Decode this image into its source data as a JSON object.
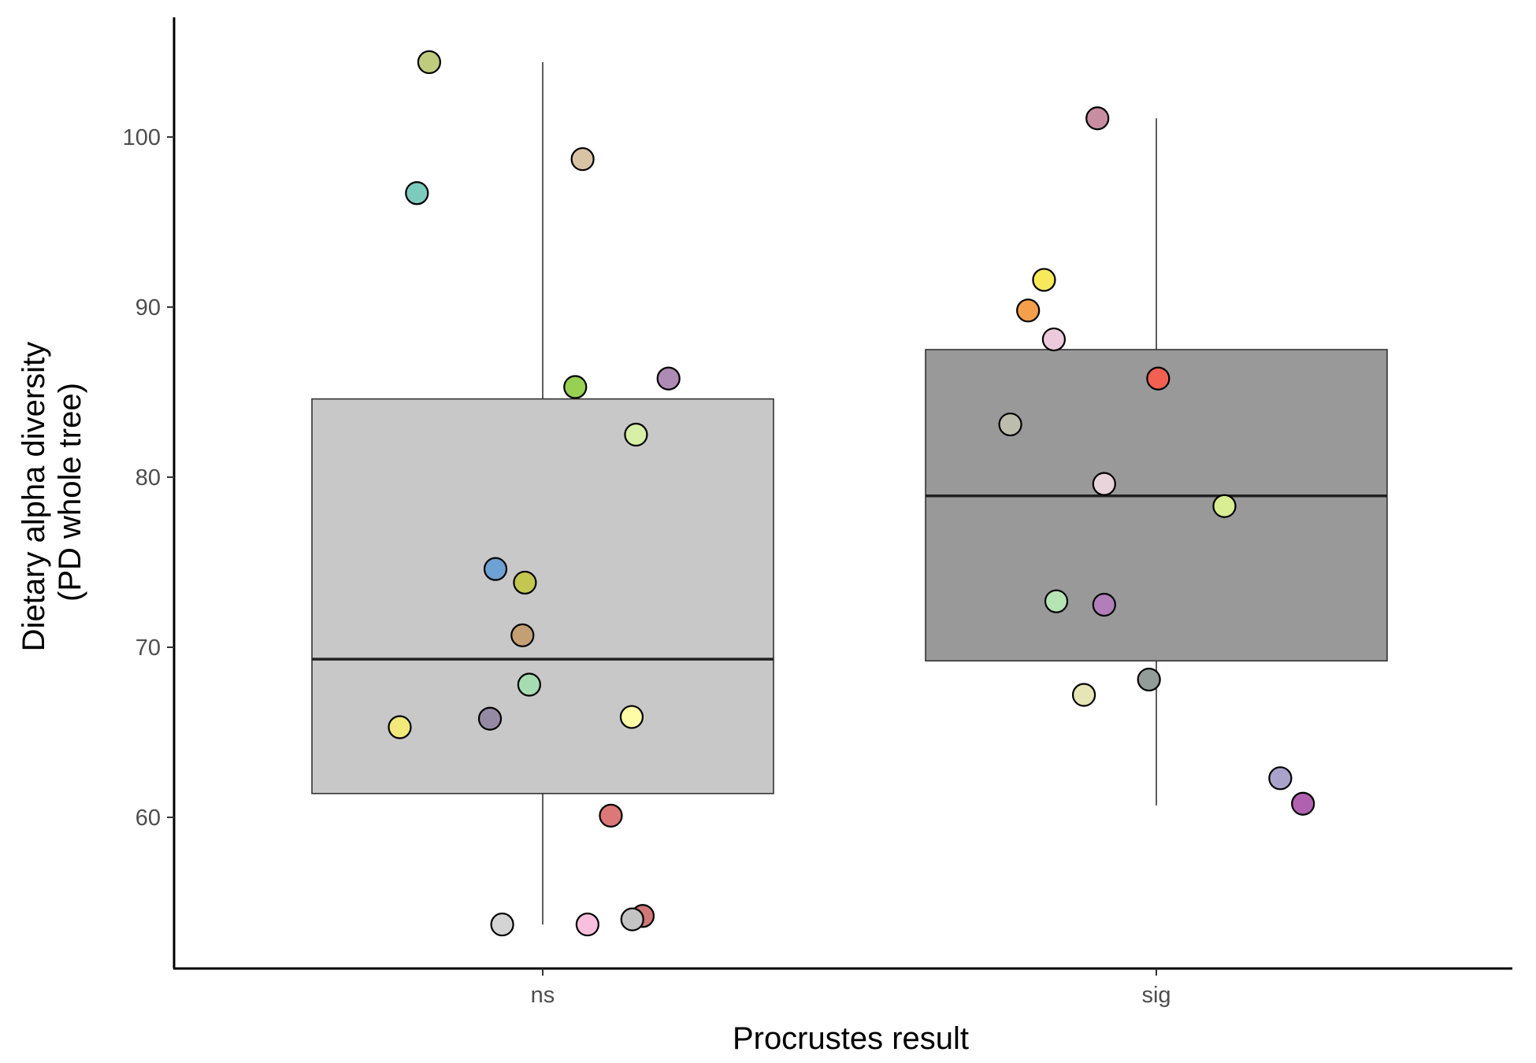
{
  "chart_data": {
    "type": "box",
    "xlabel": "Procrustes result",
    "ylabel_lines": [
      "Dietary alpha diversity",
      "(PD whole tree)"
    ],
    "categories": [
      "ns",
      "sig"
    ],
    "yticks": [
      60,
      70,
      80,
      90,
      100
    ],
    "ylim": [
      51,
      107
    ],
    "grid": false,
    "legend": "none",
    "boxes": [
      {
        "category": "ns",
        "whisker_low": 53.7,
        "q1": 61.4,
        "median": 69.3,
        "q3": 84.6,
        "whisker_high": 104.4,
        "fill": "#c8c8c8"
      },
      {
        "category": "sig",
        "whisker_low": 60.7,
        "q1": 69.2,
        "median": 78.9,
        "q3": 87.5,
        "whisker_high": 101.1,
        "fill": "#999999"
      }
    ],
    "points": [
      {
        "group": "ns",
        "jitter": -0.185,
        "y": 104.4,
        "color": "#bfcc7d"
      },
      {
        "group": "ns",
        "jitter": -0.205,
        "y": 96.7,
        "color": "#7dcbbd"
      },
      {
        "group": "ns",
        "jitter": 0.065,
        "y": 98.7,
        "color": "#d8c3a5"
      },
      {
        "group": "ns",
        "jitter": 0.205,
        "y": 85.8,
        "color": "#ae8bb4"
      },
      {
        "group": "ns",
        "jitter": 0.053,
        "y": 85.3,
        "color": "#97d053"
      },
      {
        "group": "ns",
        "jitter": 0.152,
        "y": 82.5,
        "color": "#d8f0a6"
      },
      {
        "group": "ns",
        "jitter": -0.077,
        "y": 74.6,
        "color": "#6ea1d4"
      },
      {
        "group": "ns",
        "jitter": -0.029,
        "y": 73.8,
        "color": "#c3c64f"
      },
      {
        "group": "ns",
        "jitter": -0.033,
        "y": 70.7,
        "color": "#c49f74"
      },
      {
        "group": "ns",
        "jitter": -0.022,
        "y": 67.8,
        "color": "#a6dcb1"
      },
      {
        "group": "ns",
        "jitter": -0.233,
        "y": 65.3,
        "color": "#f3e97b"
      },
      {
        "group": "ns",
        "jitter": -0.086,
        "y": 65.8,
        "color": "#958aa3"
      },
      {
        "group": "ns",
        "jitter": 0.145,
        "y": 65.9,
        "color": "#fffca8"
      },
      {
        "group": "ns",
        "jitter": 0.111,
        "y": 60.1,
        "color": "#dc7878"
      },
      {
        "group": "ns",
        "jitter": 0.163,
        "y": 54.2,
        "color": "#d07878"
      },
      {
        "group": "ns",
        "jitter": -0.066,
        "y": 53.7,
        "color": "#d4d4d4"
      },
      {
        "group": "ns",
        "jitter": 0.073,
        "y": 53.7,
        "color": "#f8c0dc"
      },
      {
        "group": "ns",
        "jitter": 0.146,
        "y": 54.0,
        "color": "#c4c4c4"
      },
      {
        "group": "sig",
        "jitter": -0.096,
        "y": 101.1,
        "color": "#c98da2"
      },
      {
        "group": "sig",
        "jitter": -0.183,
        "y": 91.6,
        "color": "#f8e95a"
      },
      {
        "group": "sig",
        "jitter": -0.209,
        "y": 89.8,
        "color": "#f4a04a"
      },
      {
        "group": "sig",
        "jitter": -0.167,
        "y": 88.1,
        "color": "#eccadb"
      },
      {
        "group": "sig",
        "jitter": 0.003,
        "y": 85.8,
        "color": "#f26052"
      },
      {
        "group": "sig",
        "jitter": -0.238,
        "y": 83.1,
        "color": "#bdbdae"
      },
      {
        "group": "sig",
        "jitter": -0.085,
        "y": 79.6,
        "color": "#e8d4da"
      },
      {
        "group": "sig",
        "jitter": 0.111,
        "y": 78.3,
        "color": "#d9ee93"
      },
      {
        "group": "sig",
        "jitter": -0.163,
        "y": 72.7,
        "color": "#b7e4b5"
      },
      {
        "group": "sig",
        "jitter": -0.085,
        "y": 72.5,
        "color": "#b17eba"
      },
      {
        "group": "sig",
        "jitter": -0.118,
        "y": 67.2,
        "color": "#e5e5b5"
      },
      {
        "group": "sig",
        "jitter": -0.012,
        "y": 68.1,
        "color": "#929c99"
      },
      {
        "group": "sig",
        "jitter": 0.202,
        "y": 62.3,
        "color": "#a9a3cc"
      },
      {
        "group": "sig",
        "jitter": 0.239,
        "y": 60.8,
        "color": "#b061b0"
      }
    ]
  }
}
